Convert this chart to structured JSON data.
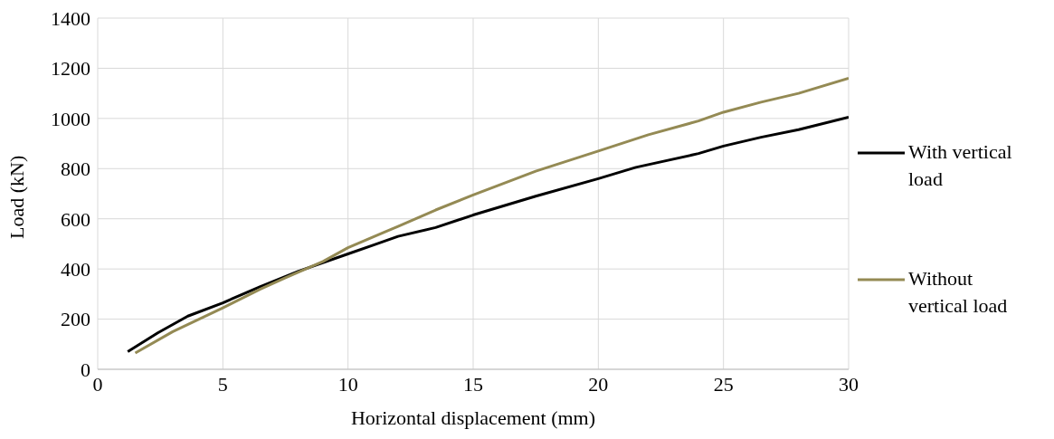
{
  "chart_data": {
    "type": "line",
    "xlabel": "Horizontal displacement (mm)",
    "ylabel": "Load (kN)",
    "xlim": [
      0,
      30
    ],
    "xticks": [
      0,
      5,
      10,
      15,
      20,
      25,
      30
    ],
    "ylim": [
      0,
      1400
    ],
    "yticks": [
      0,
      200,
      400,
      600,
      800,
      1000,
      1200,
      1400
    ],
    "grid": true,
    "legend": "right",
    "marker": "none",
    "line_style": "solid",
    "series": [
      {
        "name": "With vertical load",
        "color": "#000000",
        "x": [
          1.2,
          2.4,
          3.6,
          5,
          6.5,
          8,
          10,
          11,
          12,
          13.5,
          15,
          17.5,
          20,
          21.5,
          24,
          25,
          26.5,
          28,
          30
        ],
        "values": [
          70,
          145,
          212,
          265,
          330,
          390,
          460,
          495,
          530,
          565,
          615,
          690,
          760,
          805,
          860,
          890,
          925,
          955,
          1005
        ]
      },
      {
        "name": "Without vertical load",
        "color": "#948a54",
        "x": [
          1.5,
          3,
          5,
          6.5,
          7.5,
          9,
          10,
          12,
          13.5,
          15,
          17.5,
          20,
          22,
          24,
          25,
          26.5,
          28,
          30
        ],
        "values": [
          65,
          150,
          245,
          320,
          365,
          430,
          485,
          570,
          635,
          695,
          790,
          870,
          935,
          990,
          1025,
          1065,
          1100,
          1160
        ]
      }
    ]
  }
}
